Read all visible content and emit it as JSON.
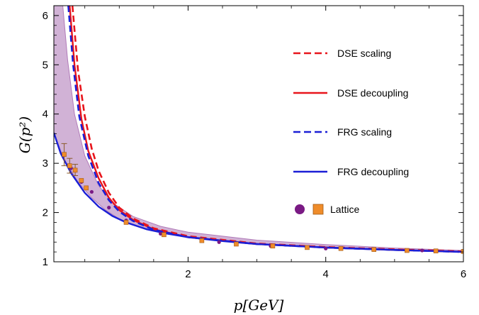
{
  "chart_data": {
    "type": "line",
    "xlabel": "p[GeV]",
    "ylabel": "G(p²)",
    "xlim": [
      0.05,
      6
    ],
    "ylim": [
      1,
      6.2
    ],
    "x_ticks": [
      2,
      4,
      6
    ],
    "y_ticks": [
      1,
      2,
      3,
      4,
      5,
      6
    ],
    "x_tick_labels": [
      "2",
      "4",
      "6"
    ],
    "y_tick_labels": [
      "1",
      "2",
      "3",
      "4",
      "5",
      "6"
    ],
    "grid": false,
    "legend_position": "right",
    "band": {
      "fill": "#c9a4cf",
      "upper": {
        "x": [
          0.18,
          0.25,
          0.35,
          0.5,
          0.7,
          0.9,
          1.2,
          1.6,
          2.0,
          3.0,
          4.0,
          5.0,
          6.0
        ],
        "y": [
          6.2,
          5.1,
          4.0,
          3.15,
          2.55,
          2.2,
          1.92,
          1.72,
          1.6,
          1.44,
          1.35,
          1.28,
          1.23
        ]
      },
      "lower": {
        "x": [
          0.05,
          0.2,
          0.4,
          0.6,
          0.8,
          1.0,
          1.3,
          1.6,
          2.0,
          3.0,
          4.0,
          5.0,
          6.0
        ],
        "y": [
          3.6,
          3.08,
          2.62,
          2.3,
          2.05,
          1.87,
          1.7,
          1.6,
          1.5,
          1.37,
          1.29,
          1.24,
          1.2
        ]
      }
    },
    "series": [
      {
        "name": "DSE scaling",
        "color": "#e8141b",
        "dash": true,
        "x": [
          0.32,
          0.4,
          0.5,
          0.6,
          0.7,
          0.85,
          1.0,
          1.2,
          1.5,
          2.0,
          3.0,
          4.0,
          5.0,
          6.0
        ],
        "y": [
          6.2,
          4.9,
          3.95,
          3.3,
          2.85,
          2.4,
          2.1,
          1.88,
          1.68,
          1.52,
          1.37,
          1.3,
          1.25,
          1.21
        ]
      },
      {
        "name": "DSE decoupling",
        "color": "#e8141b",
        "dash": false,
        "x": [
          0.28,
          0.35,
          0.45,
          0.55,
          0.7,
          0.85,
          1.0,
          1.2,
          1.5,
          2.0,
          3.0,
          4.0,
          5.0,
          6.0
        ],
        "y": [
          6.2,
          5.0,
          3.9,
          3.25,
          2.7,
          2.3,
          2.05,
          1.85,
          1.66,
          1.5,
          1.36,
          1.29,
          1.24,
          1.2
        ]
      },
      {
        "name": "FRG scaling",
        "color": "#1b1fd6",
        "dash": true,
        "x": [
          0.26,
          0.33,
          0.42,
          0.55,
          0.7,
          0.85,
          1.0,
          1.2,
          1.5,
          2.0,
          3.0,
          4.0,
          5.0,
          6.0
        ],
        "y": [
          6.2,
          5.0,
          3.95,
          3.15,
          2.6,
          2.25,
          2.02,
          1.83,
          1.65,
          1.5,
          1.36,
          1.29,
          1.24,
          1.2
        ]
      },
      {
        "name": "FRG decoupling",
        "color": "#1b1fd6",
        "dash": false,
        "x": [
          0.05,
          0.15,
          0.3,
          0.5,
          0.7,
          0.9,
          1.1,
          1.4,
          1.7,
          2.0,
          2.5,
          3.0,
          4.0,
          5.0,
          6.0
        ],
        "y": [
          3.62,
          3.2,
          2.8,
          2.4,
          2.12,
          1.93,
          1.8,
          1.66,
          1.57,
          1.5,
          1.42,
          1.36,
          1.29,
          1.24,
          1.2
        ]
      }
    ],
    "lattice": {
      "name": "Lattice",
      "circle_color": "#7a1a84",
      "square_color": "#ef8c2a",
      "circles": {
        "x": [
          0.3,
          0.45,
          0.6,
          0.85,
          1.1,
          1.6,
          2.45,
          3.2,
          4.0,
          4.7,
          5.4,
          6.0
        ],
        "y": [
          2.9,
          2.62,
          2.42,
          2.1,
          1.84,
          1.57,
          1.4,
          1.32,
          1.27,
          1.25,
          1.23,
          1.21
        ]
      },
      "squares": {
        "x": [
          0.2,
          0.28,
          0.36,
          0.45,
          0.52,
          1.1,
          1.65,
          2.2,
          2.7,
          3.23,
          3.73,
          4.22,
          4.7,
          5.18,
          5.6,
          6.0
        ],
        "y": [
          3.18,
          2.95,
          2.86,
          2.65,
          2.5,
          1.8,
          1.55,
          1.43,
          1.36,
          1.32,
          1.29,
          1.27,
          1.25,
          1.23,
          1.22,
          1.21
        ]
      },
      "errors": {
        "x": [
          0.2,
          0.28,
          0.36
        ],
        "low": [
          2.95,
          2.8,
          2.75
        ],
        "high": [
          3.4,
          3.1,
          2.98
        ]
      }
    }
  }
}
